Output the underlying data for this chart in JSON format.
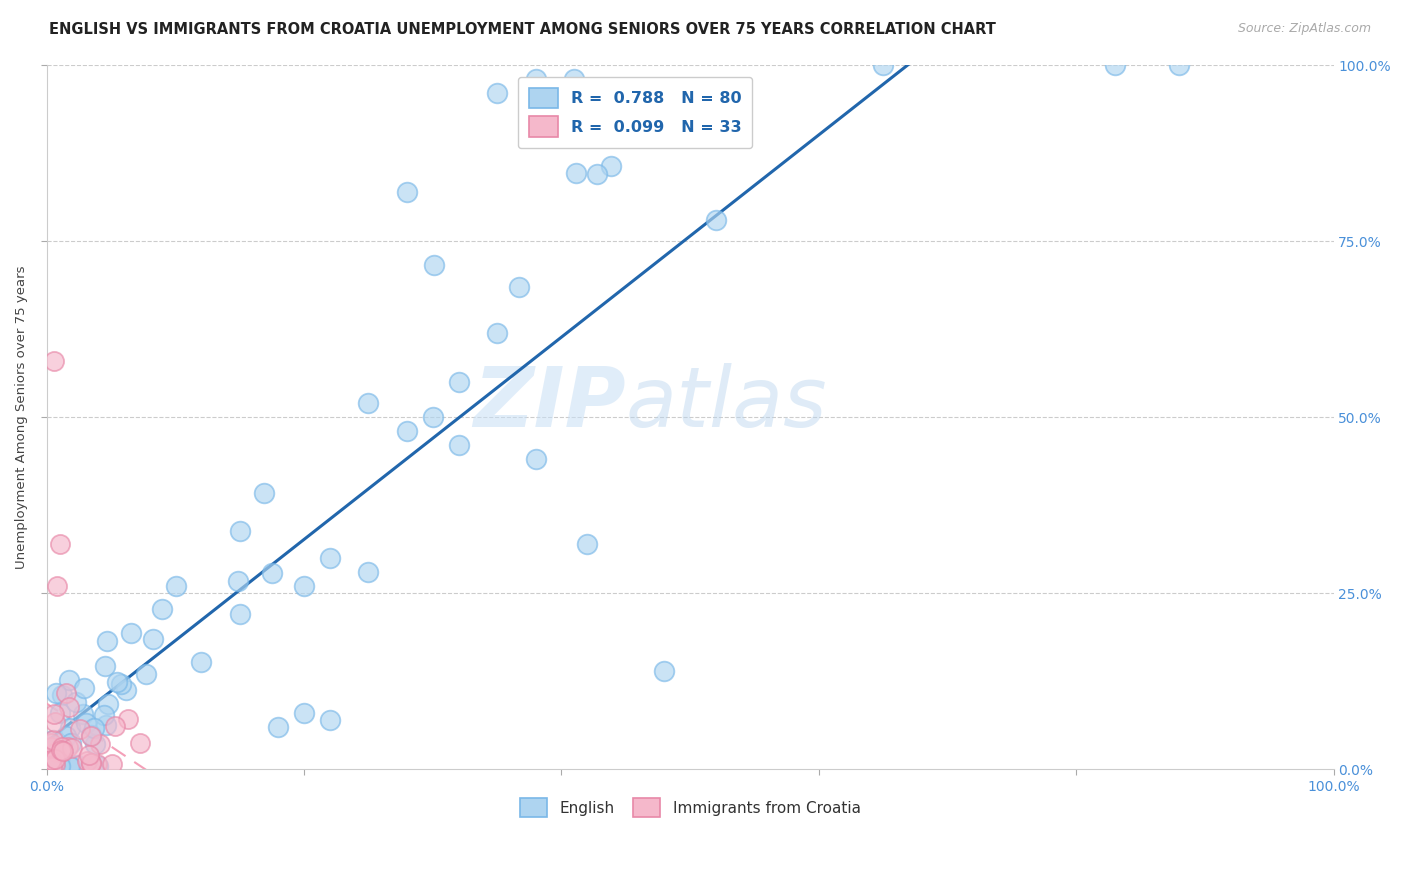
{
  "title": "ENGLISH VS IMMIGRANTS FROM CROATIA UNEMPLOYMENT AMONG SENIORS OVER 75 YEARS CORRELATION CHART",
  "source": "Source: ZipAtlas.com",
  "ylabel": "Unemployment Among Seniors over 75 years",
  "xlim": [
    0.0,
    1.0
  ],
  "ylim": [
    0.0,
    1.0
  ],
  "background_color": "#ffffff",
  "watermark_zip": "ZIP",
  "watermark_atlas": "atlas",
  "tick_color": "#4a90d9",
  "blue_scatter_face": "#aed4f0",
  "blue_scatter_edge": "#7ab8e8",
  "pink_scatter_face": "#f5b8cb",
  "pink_scatter_edge": "#e888a8",
  "line_blue_color": "#2166ac",
  "line_pink_color": "#f4a0b8",
  "legend_text_color": "#2166ac",
  "grid_color": "#cccccc"
}
